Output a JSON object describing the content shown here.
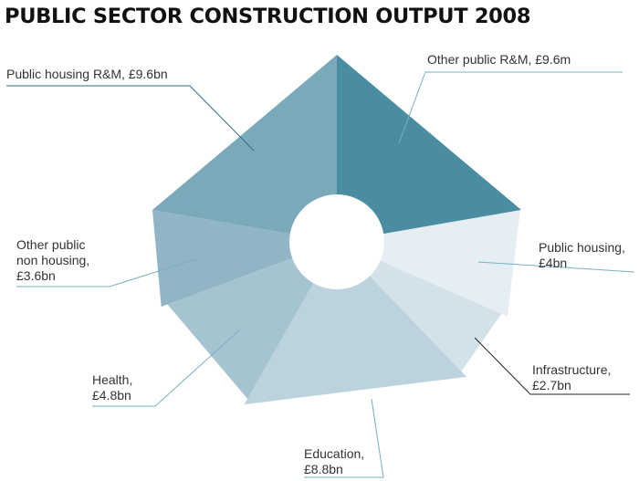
{
  "chart_data": {
    "type": "pie",
    "title": "PUBLIC SECTOR CONSTRUCTION OUTPUT 2008",
    "slices": [
      {
        "label_lines": [
          "Other public R&M, £9.6m"
        ],
        "value": 9.6,
        "color": "#4a8da3",
        "line_color": "#7aaec0"
      },
      {
        "label_lines": [
          "Public housing,",
          "£4bn"
        ],
        "value": 4.0,
        "color": "#e5eef2",
        "line_color": "#7aaec0"
      },
      {
        "label_lines": [
          "Infrastructure,",
          "£2.7bn"
        ],
        "value": 2.7,
        "color": "#d3e1e8",
        "line_color": "#222222"
      },
      {
        "label_lines": [
          "Education,",
          "£8.8bn"
        ],
        "value": 8.8,
        "color": "#bcd2dc",
        "line_color": "#7aaec0"
      },
      {
        "label_lines": [
          "Health,",
          "£4.8bn"
        ],
        "value": 4.8,
        "color": "#a6c4d0",
        "line_color": "#7aaec0"
      },
      {
        "label_lines": [
          "Other public",
          "non housing,",
          "£3.6bn"
        ],
        "value": 3.6,
        "color": "#91b5c4",
        "line_color": "#7aaec0"
      },
      {
        "label_lines": [
          "Public housing R&M, £9.6bn"
        ],
        "value": 9.6,
        "color": "#7aa9ba",
        "line_color": "#2e6e88"
      }
    ]
  }
}
